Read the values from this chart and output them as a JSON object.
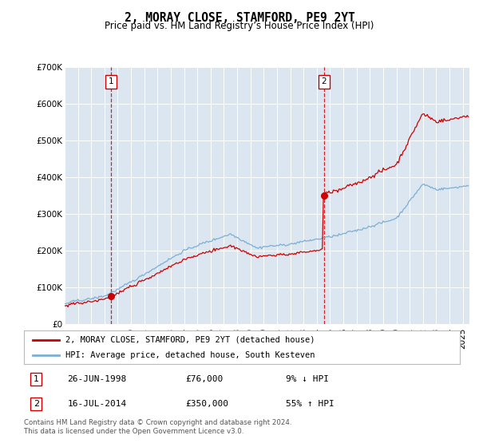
{
  "title": "2, MORAY CLOSE, STAMFORD, PE9 2YT",
  "subtitle": "Price paid vs. HM Land Registry’s House Price Index (HPI)",
  "legend_line1": "2, MORAY CLOSE, STAMFORD, PE9 2YT (detached house)",
  "legend_line2": "HPI: Average price, detached house, South Kesteven",
  "sale1_yr": 1998.48,
  "sale1_price": 76000,
  "sale1_label": "26-JUN-1998",
  "sale1_pct": "9% ↓ HPI",
  "sale2_yr": 2014.54,
  "sale2_price": 350000,
  "sale2_label": "16-JUL-2014",
  "sale2_pct": "55% ↑ HPI",
  "ylim": [
    0,
    700000
  ],
  "yticks": [
    0,
    100000,
    200000,
    300000,
    400000,
    500000,
    600000,
    700000
  ],
  "xlim": [
    1995.0,
    2025.5
  ],
  "background_color": "#dce6f1",
  "line_color_property": "#cc0000",
  "line_color_hpi": "#7bafd4",
  "footer": "Contains HM Land Registry data © Crown copyright and database right 2024.\nThis data is licensed under the Open Government Licence v3.0."
}
